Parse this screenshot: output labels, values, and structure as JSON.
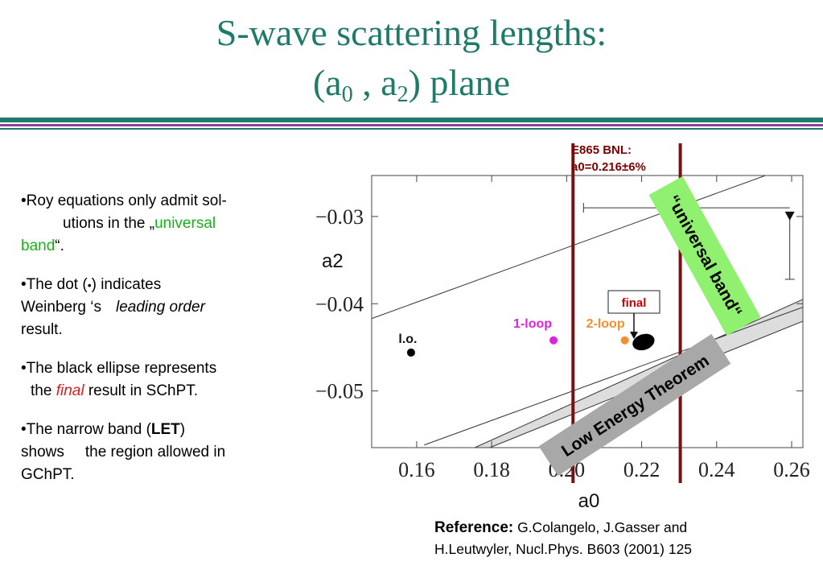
{
  "title": {
    "line1": "S-wave scattering lengths:",
    "line2_pre": "(a",
    "line2_sub0": "0",
    "line2_mid": " , a",
    "line2_sub2": "2",
    "line2_post": ") plane"
  },
  "bullets": {
    "b1_a": "•Roy equations only admit sol-",
    "b1_b": "utions in the „",
    "b1_universal": "universal",
    "b1_band": "band",
    "b1_end": "“.",
    "b2_a": "•The dot (",
    "b2_dot": "•",
    "b2_b": ") indicates",
    "b2_c": "Weinberg ‘s",
    "b2_lo": "leading order",
    "b2_d": "result.",
    "b3_a": "•The black ellipse represents",
    "b3_b": "the ",
    "b3_final": "final",
    "b3_c": " result in SChPT.",
    "b4_a": "•The narrow band (",
    "b4_let": "LET",
    "b4_b": ")",
    "b4_c": "shows",
    "b4_d": "the region allowed in",
    "b4_e": "GChPT."
  },
  "reference": {
    "label": "Reference:",
    "line1": " G.Colangelo, J.Gasser and",
    "line2": "H.Leutwyler, Nucl.Phys. B603 (2001) 125"
  },
  "chart_data": {
    "type": "scatter",
    "xlabel": "a0",
    "ylabel": "a2",
    "xlim": [
      0.148,
      0.263
    ],
    "ylim": [
      -0.0565,
      -0.0253
    ],
    "xticks": [
      0.16,
      0.18,
      0.2,
      0.22,
      0.24,
      0.26
    ],
    "xtick_labels": [
      "0.16",
      "0.18",
      "0.20",
      "0.22",
      "0.24",
      "0.26"
    ],
    "yticks": [
      -0.03,
      -0.04,
      -0.05
    ],
    "ytick_labels": [
      "−0.03",
      "−0.04",
      "−0.05"
    ],
    "points": [
      {
        "label": "l.o.",
        "x": 0.1585,
        "y": -0.0456,
        "color": "#000000"
      },
      {
        "label": "1-loop",
        "x": 0.1965,
        "y": -0.0442,
        "color": "#e020e0"
      },
      {
        "label": "2-loop",
        "x": 0.2155,
        "y": -0.0442,
        "color": "#f09030"
      }
    ],
    "final": {
      "label": "final",
      "x": 0.2205,
      "y": -0.0444,
      "width_x": 0.006,
      "height_y": 0.0018
    },
    "lines": [
      {
        "name": "universal band upper edge",
        "x": [
          0.148,
          0.253
        ],
        "y": [
          -0.0417,
          -0.0253
        ]
      },
      {
        "name": "universal band lower edge",
        "x": [
          0.162,
          0.263
        ],
        "y": [
          -0.0562,
          -0.0404
        ]
      },
      {
        "name": "LET band upper edge",
        "x": [
          0.1755,
          0.263
        ],
        "y": [
          -0.0565,
          -0.0395
        ]
      },
      {
        "name": "LET band lower edge",
        "x": [
          0.1795,
          0.263
        ],
        "y": [
          -0.0565,
          -0.042
        ]
      }
    ],
    "measurement": {
      "label": "E865 BNL:",
      "value_text": "a0=0.216±6%",
      "a0_low": 0.2017,
      "a0_high": 0.2303,
      "error_bar": {
        "x_left": 0.2045,
        "x_right": 0.2595,
        "y": -0.029,
        "marker_x": 0.2595,
        "marker_y": -0.03,
        "y_low": -0.0372
      }
    },
    "annotations": {
      "universal_band": "“universal band“",
      "let": "Low Energy Theorem",
      "final": "final"
    },
    "colors": {
      "measurement_lines": "#7a1010",
      "universal_band_box": "#90f070",
      "let_box": "#a8a8a8",
      "band_fill": "#dddddd",
      "measurement_text": "#800000",
      "final_text": "#cc0000"
    }
  }
}
